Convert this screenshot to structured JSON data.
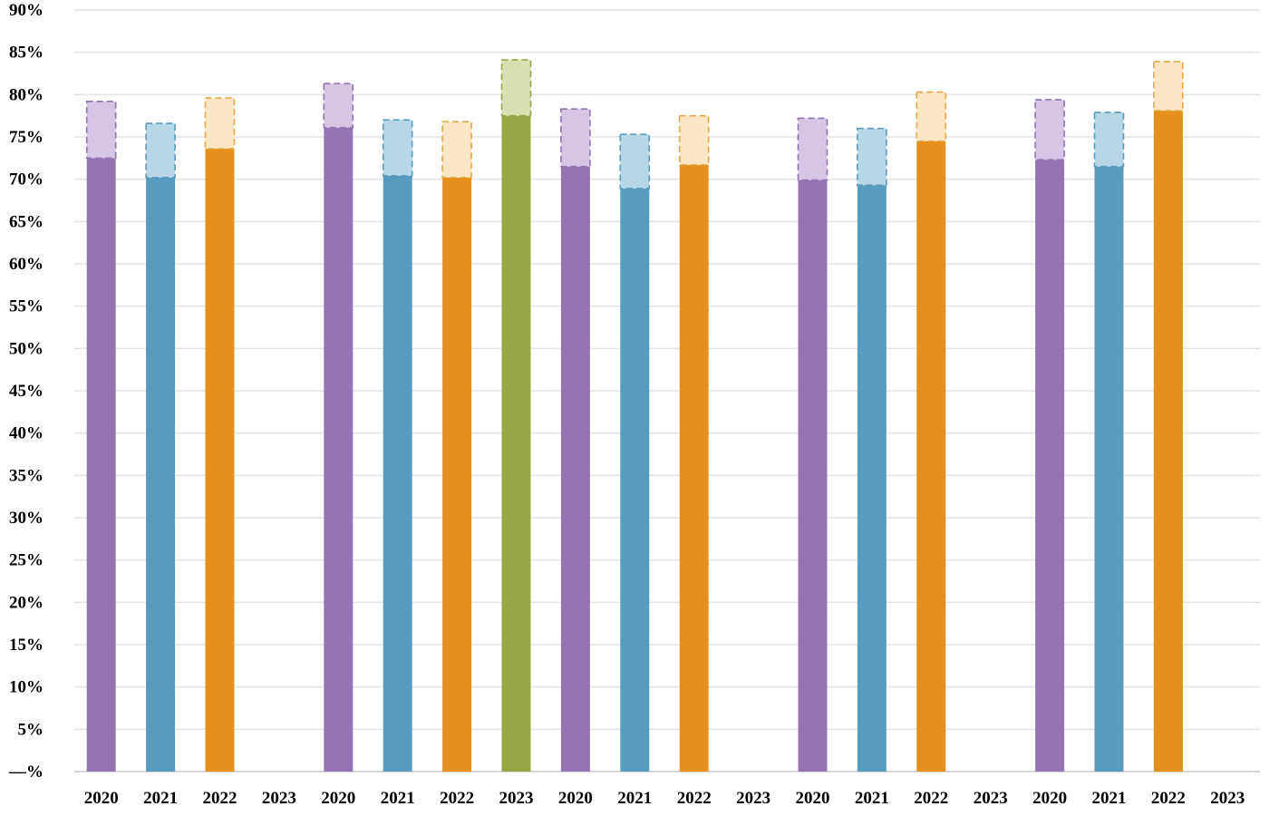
{
  "chart_data": {
    "type": "bar",
    "ylim": [
      0,
      90
    ],
    "y_ticks": [
      {
        "value": 0,
        "label": "—%"
      },
      {
        "value": 5,
        "label": "5%"
      },
      {
        "value": 10,
        "label": "10%"
      },
      {
        "value": 15,
        "label": "15%"
      },
      {
        "value": 20,
        "label": "20%"
      },
      {
        "value": 25,
        "label": "25%"
      },
      {
        "value": 30,
        "label": "30%"
      },
      {
        "value": 35,
        "label": "35%"
      },
      {
        "value": 40,
        "label": "40%"
      },
      {
        "value": 45,
        "label": "45%"
      },
      {
        "value": 50,
        "label": "50%"
      },
      {
        "value": 55,
        "label": "55%"
      },
      {
        "value": 60,
        "label": "60%"
      },
      {
        "value": 65,
        "label": "65%"
      },
      {
        "value": 70,
        "label": "70%"
      },
      {
        "value": 75,
        "label": "75%"
      },
      {
        "value": 80,
        "label": "80%"
      },
      {
        "value": 85,
        "label": "85%"
      },
      {
        "value": 90,
        "label": "90%"
      }
    ],
    "grid": true,
    "legend": "none",
    "colors": {
      "2020": {
        "solid": "#9473b3",
        "light": "#d6c6e3",
        "dash": "#9473b3"
      },
      "2021": {
        "solid": "#579bbf",
        "light": "#b9d6e6",
        "dash": "#579bbf"
      },
      "2022": {
        "solid": "#e5901e",
        "light": "#fde6c4",
        "dash": "#e5a84a"
      },
      "2023": {
        "solid": "#96a845",
        "light": "#d6e0b0",
        "dash": "#96a845"
      }
    },
    "categories": [
      "2020",
      "2021",
      "2022",
      "2023",
      "2020",
      "2021",
      "2022",
      "2023",
      "2020",
      "2021",
      "2022",
      "2023",
      "2020",
      "2021",
      "2022",
      "2023",
      "2020",
      "2021",
      "2022",
      "2023"
    ],
    "bars": [
      {
        "category": "2020",
        "year": "2020",
        "value": 72.5,
        "upper": 79.2
      },
      {
        "category": "2021",
        "year": "2021",
        "value": 70.2,
        "upper": 76.6
      },
      {
        "category": "2022",
        "year": "2022",
        "value": 73.6,
        "upper": 79.6
      },
      {
        "category": "2023",
        "year": "2023",
        "value": null,
        "upper": null
      },
      {
        "category": "2020",
        "year": "2020",
        "value": 76.1,
        "upper": 81.3
      },
      {
        "category": "2021",
        "year": "2021",
        "value": 70.4,
        "upper": 77.0
      },
      {
        "category": "2022",
        "year": "2022",
        "value": 70.2,
        "upper": 76.8
      },
      {
        "category": "2023",
        "year": "2023",
        "value": 77.5,
        "upper": 84.1
      },
      {
        "category": "2020",
        "year": "2020",
        "value": 71.5,
        "upper": 78.3
      },
      {
        "category": "2021",
        "year": "2021",
        "value": 68.9,
        "upper": 75.3
      },
      {
        "category": "2022",
        "year": "2022",
        "value": 71.7,
        "upper": 77.5
      },
      {
        "category": "2023",
        "year": "2023",
        "value": null,
        "upper": null
      },
      {
        "category": "2020",
        "year": "2020",
        "value": 69.9,
        "upper": 77.2
      },
      {
        "category": "2021",
        "year": "2021",
        "value": 69.3,
        "upper": 76.0
      },
      {
        "category": "2022",
        "year": "2022",
        "value": 74.5,
        "upper": 80.3
      },
      {
        "category": "2023",
        "year": "2023",
        "value": null,
        "upper": null
      },
      {
        "category": "2020",
        "year": "2020",
        "value": 72.3,
        "upper": 79.4
      },
      {
        "category": "2021",
        "year": "2021",
        "value": 71.5,
        "upper": 77.9
      },
      {
        "category": "2022",
        "year": "2022",
        "value": 78.1,
        "upper": 83.9
      },
      {
        "category": "2023",
        "year": "2023",
        "value": null,
        "upper": null
      }
    ]
  }
}
